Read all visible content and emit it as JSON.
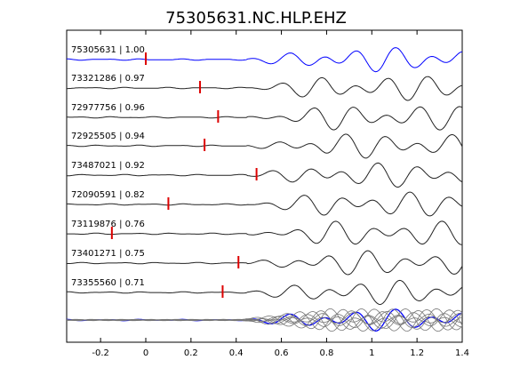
{
  "chart_data": {
    "type": "line",
    "title": "75305631.NC.HLP.EHZ",
    "xlim": [
      -0.35,
      1.4
    ],
    "xticks": [
      -0.2,
      0,
      0.2,
      0.4,
      0.6,
      0.8,
      1,
      1.2,
      1.4
    ],
    "xtick_labels": [
      "-0.2",
      "0",
      "0.2",
      "0.4",
      "0.6",
      "0.8",
      "1",
      "1.2",
      "1.4"
    ],
    "grid": false,
    "colors": {
      "reference": "#0000ff",
      "trace": "#222222",
      "marker": "#dd0000",
      "stack": "#777777"
    },
    "series": [
      {
        "name": "75305631 | 1.00",
        "pick": 0.0,
        "reference": true
      },
      {
        "name": "73321286 | 0.97",
        "pick": 0.24
      },
      {
        "name": "72977756 | 0.96",
        "pick": 0.32
      },
      {
        "name": "72925505 | 0.94",
        "pick": 0.26
      },
      {
        "name": "73487021 | 0.92",
        "pick": 0.49
      },
      {
        "name": "72090591 | 0.82",
        "pick": 0.1
      },
      {
        "name": "73119876 | 0.76",
        "pick": -0.15
      },
      {
        "name": "73401271 | 0.75",
        "pick": 0.41
      },
      {
        "name": "73355560 | 0.71",
        "pick": 0.34
      }
    ],
    "stack_panel": true
  }
}
